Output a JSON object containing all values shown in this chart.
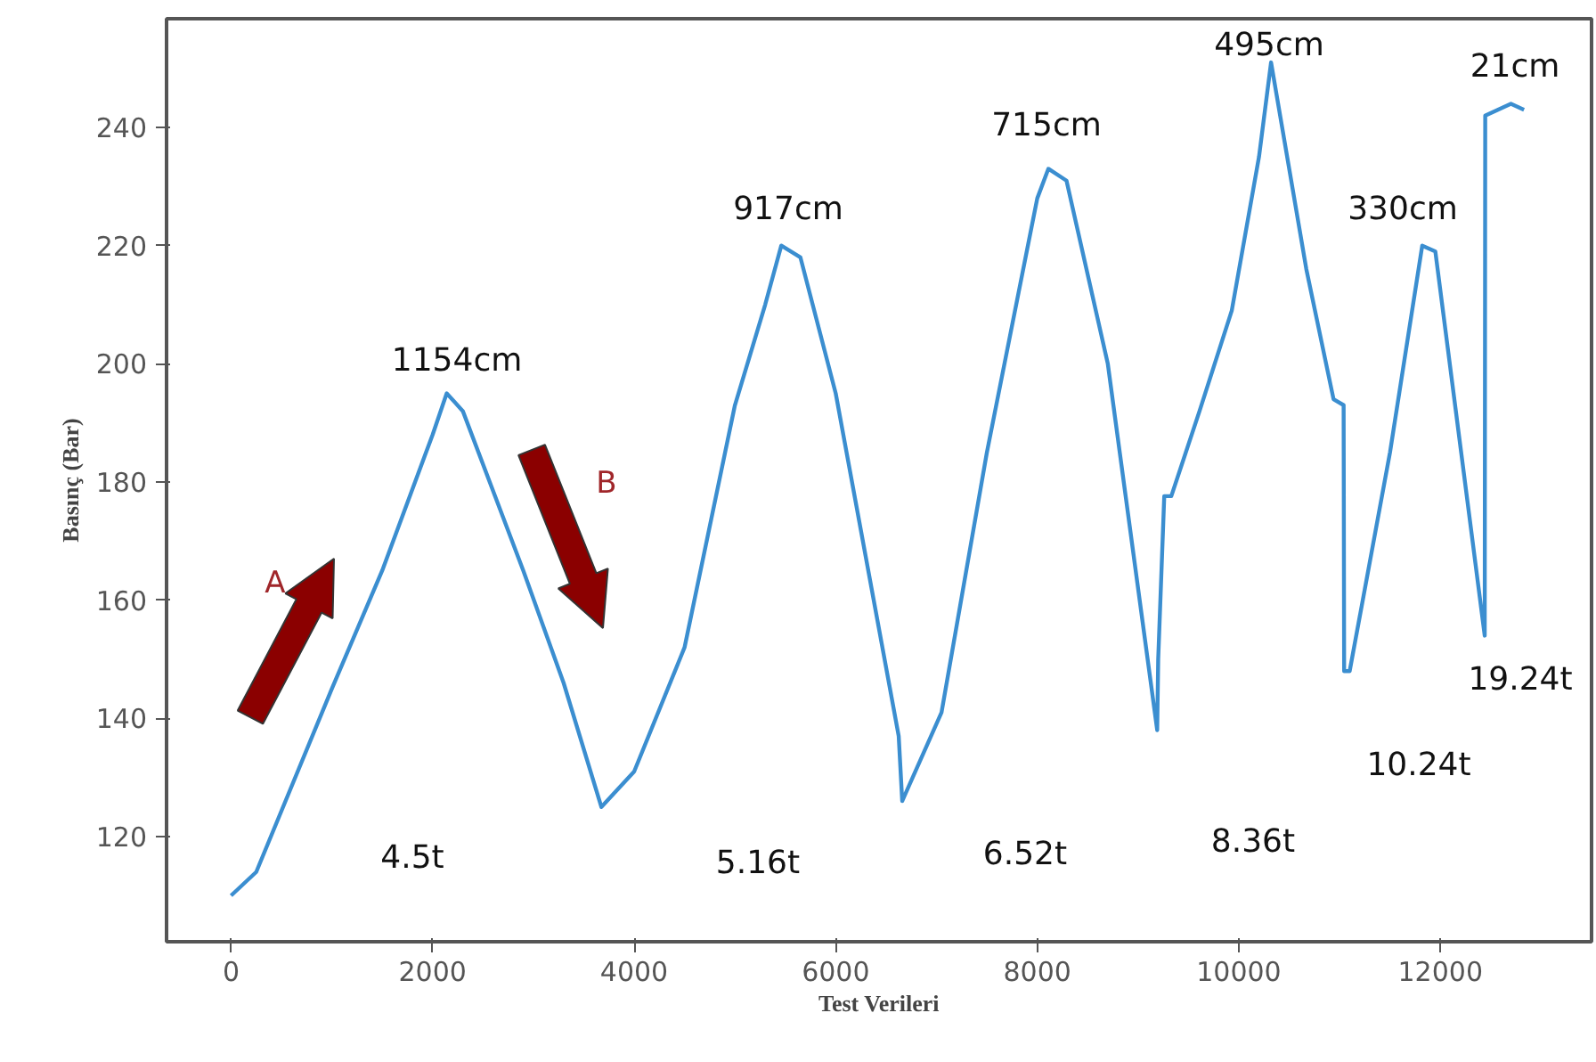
{
  "chart_data": {
    "type": "line",
    "xlabel": "Test Verileri",
    "ylabel": "Basınç (Bar)",
    "x": [
      0,
      250,
      1000,
      1500,
      2000,
      2140,
      2300,
      2900,
      3300,
      3675,
      4000,
      4500,
      5000,
      5300,
      5460,
      5650,
      6000,
      6625,
      6660,
      7050,
      7500,
      8000,
      8110,
      8290,
      8700,
      9190,
      9200,
      9260,
      9330,
      9610,
      9930,
      10200,
      10320,
      10670,
      10940,
      11040,
      11045,
      11100,
      11500,
      11820,
      11950,
      12440,
      12445,
      12700,
      12830
    ],
    "series": [
      {
        "color": "#3b8ed0",
        "values": [
          110,
          114,
          145,
          165,
          188,
          195,
          192,
          165,
          146,
          125,
          131,
          152,
          193,
          210,
          220,
          218,
          195,
          137,
          126,
          141,
          185,
          228,
          233,
          231,
          200,
          138,
          150,
          177.6,
          177.6,
          192,
          209,
          235,
          251,
          216,
          194,
          193,
          148,
          148,
          185,
          220,
          219,
          154,
          242,
          244,
          243
        ]
      }
    ],
    "xlim": [
      -640,
      13500
    ],
    "ylim": [
      102.2,
      258.4
    ],
    "xticks": [
      0,
      2000,
      4000,
      6000,
      8000,
      10000,
      12000
    ],
    "yticks": [
      120,
      140,
      160,
      180,
      200,
      220,
      240
    ],
    "grid": false,
    "marker": "none",
    "line_style": "solid",
    "annotations": [
      "1154cm",
      "917cm",
      "715cm",
      "495cm",
      "330cm",
      "21cm",
      "4.5t",
      "5.16t",
      "6.52t",
      "8.36t",
      "10.24t",
      "19.24t",
      "A",
      "B"
    ]
  }
}
